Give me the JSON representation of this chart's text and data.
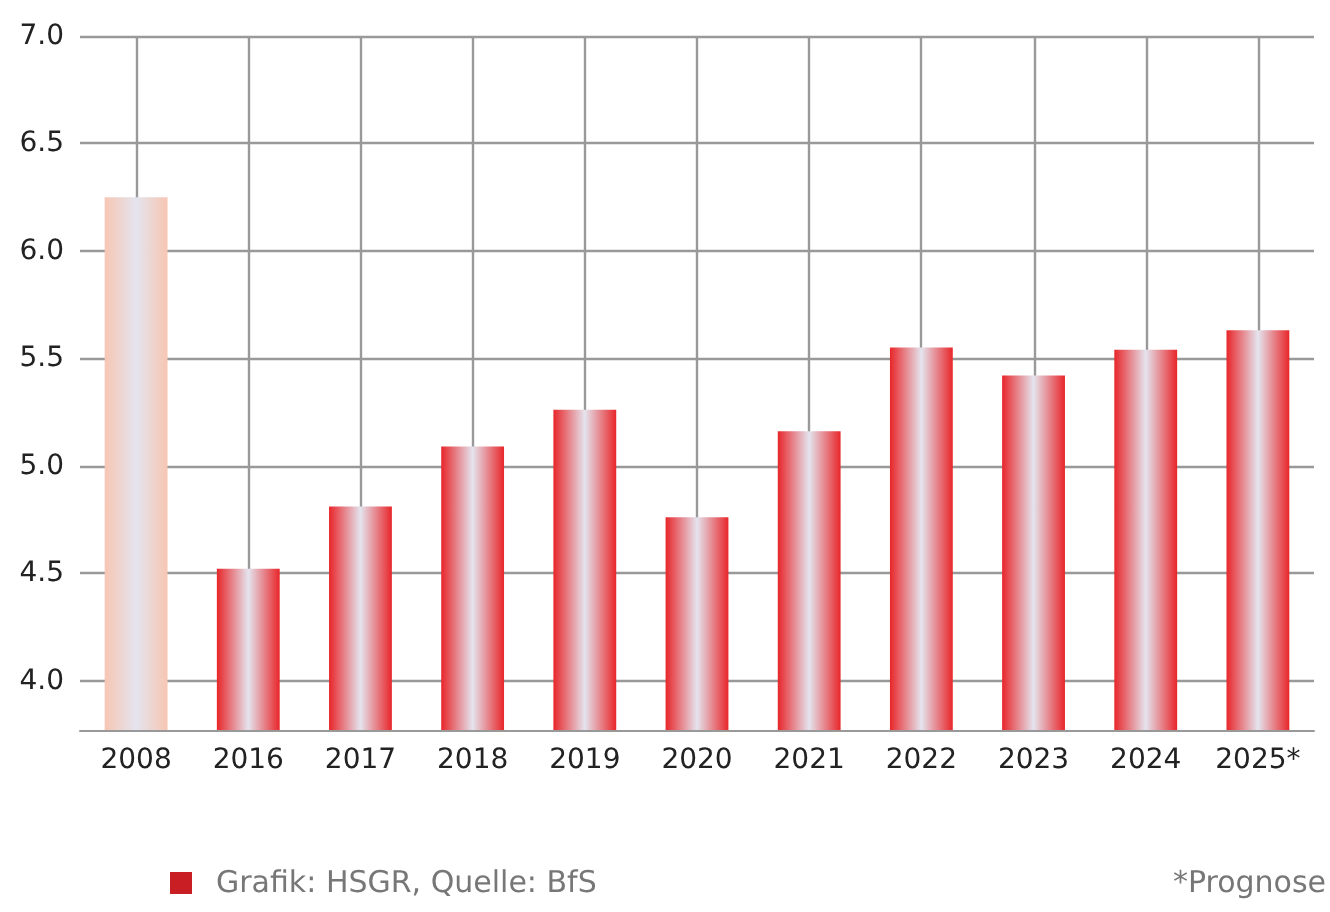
{
  "chart_data": {
    "type": "bar",
    "categories": [
      "2008",
      "2016",
      "2017",
      "2018",
      "2019",
      "2020",
      "2021",
      "2022",
      "2023",
      "2024",
      "2025*"
    ],
    "values": [
      6.25,
      4.52,
      4.81,
      5.09,
      5.26,
      4.76,
      5.16,
      5.55,
      5.42,
      5.54,
      5.63
    ],
    "colors": [
      "#f7c6b3",
      "#e8262a",
      "#e8262a",
      "#e8262a",
      "#e8262a",
      "#e8262a",
      "#e8262a",
      "#e8262a",
      "#e8262a",
      "#e8262a",
      "#e8262a"
    ],
    "ylim": [
      3.77,
      7.0
    ],
    "yticks": [
      {
        "value": 4,
        "label": "4.0"
      },
      {
        "value": 4.5,
        "label": "4.5"
      },
      {
        "value": 5,
        "label": "5.0"
      },
      {
        "value": 5.5,
        "label": "5.5"
      },
      {
        "value": 6,
        "label": "6.0"
      },
      {
        "value": 6.5,
        "label": "6.5"
      },
      {
        "value": 7,
        "label": "7.0"
      }
    ],
    "grid": true,
    "annotations": [
      "Grafik: HSGR, Quelle: BfS",
      "*Prognose"
    ]
  }
}
